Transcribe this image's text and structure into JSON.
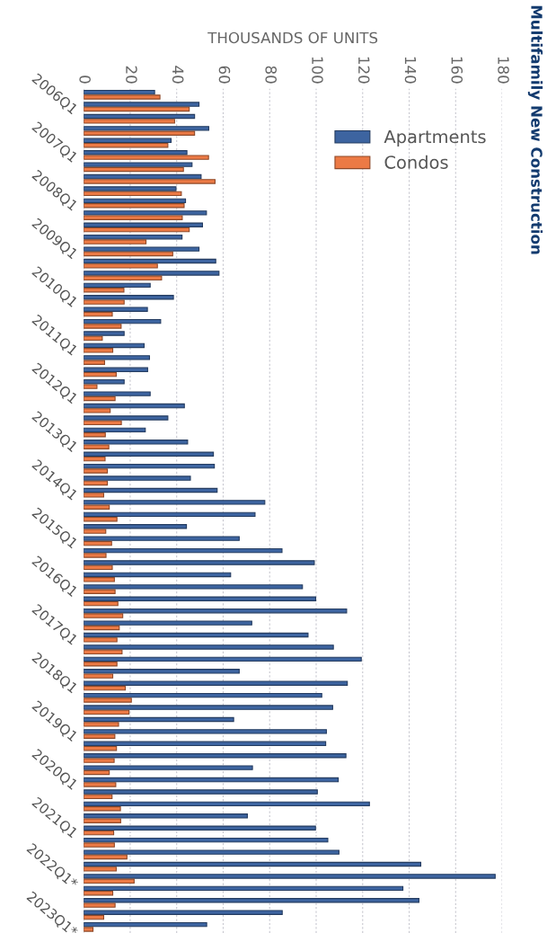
{
  "chart_data": {
    "type": "bar",
    "orientation": "horizontal",
    "title": "Multifamily New Construction",
    "xlabel": "THOUSANDS OF UNITS",
    "categories": [
      "2006Q1",
      null,
      null,
      null,
      "2007Q1",
      null,
      null,
      null,
      "2008Q1",
      null,
      null,
      null,
      "2009Q1",
      null,
      null,
      null,
      "2010Q1",
      null,
      null,
      null,
      "2011Q1",
      null,
      null,
      null,
      "2012Q1",
      null,
      null,
      null,
      "2013Q1",
      null,
      null,
      null,
      "2014Q1",
      null,
      null,
      null,
      "2015Q1",
      null,
      null,
      null,
      "2016Q1",
      null,
      null,
      null,
      "2017Q1",
      null,
      null,
      null,
      "2018Q1",
      null,
      null,
      null,
      "2019Q1",
      null,
      null,
      null,
      "2020Q1",
      null,
      null,
      null,
      "2021Q1",
      null,
      null,
      null,
      "2022Q1*",
      null,
      null,
      null,
      "2023Q1*",
      null
    ],
    "series": [
      {
        "name": "Apartments",
        "color": "#3d64a0",
        "values": [
          30.5,
          49.6,
          47.7,
          53.8,
          37.6,
          44.4,
          46.6,
          50.5,
          39.7,
          43.8,
          52.8,
          51.1,
          42.3,
          49.6,
          56.8,
          58.2,
          28.6,
          38.6,
          27.4,
          33.1,
          17.4,
          26.0,
          28.3,
          27.5,
          17.4,
          28.6,
          43.3,
          36.2,
          26.5,
          44.7,
          55.8,
          56.2,
          45.9,
          57.4,
          77.9,
          73.7,
          44.2,
          66.9,
          85.3,
          99.2,
          63.2,
          94.1,
          99.8,
          113.1,
          72.3,
          96.5,
          107.4,
          119.4,
          66.9,
          113.4,
          102.4,
          107.1,
          64.5,
          104.4,
          104.1,
          112.8,
          72.6,
          109.5,
          100.5,
          122.9,
          70.4,
          99.7,
          105.0,
          109.8,
          145.0,
          177.0,
          137.3,
          144.2,
          85.4,
          52.9
        ]
      },
      {
        "name": "Condos",
        "color": "#ec7a45",
        "values": [
          32.8,
          45.4,
          39.1,
          47.7,
          36.2,
          53.7,
          42.9,
          56.5,
          42.0,
          43.2,
          42.4,
          45.4,
          26.8,
          38.3,
          31.7,
          33.5,
          17.3,
          17.4,
          12.3,
          16.1,
          8.0,
          12.5,
          9.0,
          14.0,
          5.7,
          13.5,
          11.4,
          16.2,
          9.3,
          10.8,
          9.2,
          10.2,
          10.2,
          8.6,
          11.0,
          14.3,
          9.5,
          12.0,
          9.6,
          12.3,
          13.2,
          13.5,
          14.7,
          16.8,
          15.3,
          14.3,
          16.5,
          14.3,
          12.5,
          17.9,
          20.5,
          19.5,
          15.0,
          13.4,
          14.1,
          13.1,
          11.0,
          13.8,
          12.2,
          15.8,
          15.9,
          12.9,
          13.2,
          18.6,
          14.0,
          21.7,
          12.5,
          13.5,
          8.6,
          4.0
        ]
      }
    ],
    "xlim": [
      0,
      180
    ],
    "xticks": [
      0,
      20,
      40,
      60,
      80,
      100,
      120,
      140,
      160,
      180
    ],
    "grid": "x",
    "legend": "top right"
  }
}
